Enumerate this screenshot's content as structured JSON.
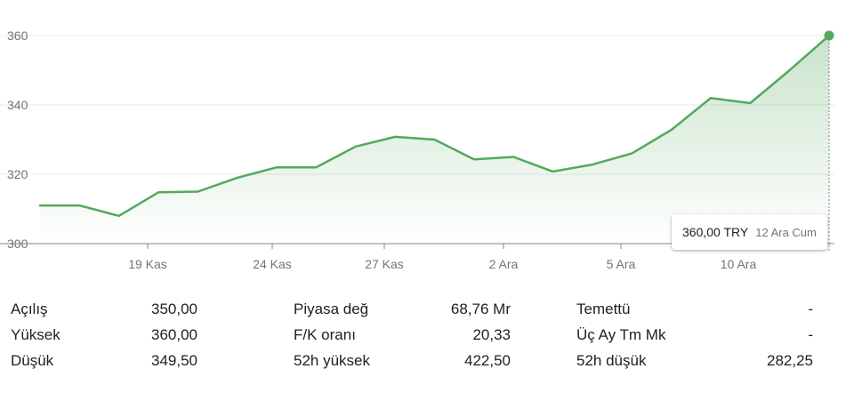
{
  "chart_data": {
    "type": "area",
    "y_ticks": [
      300,
      320,
      340,
      360
    ],
    "ylim": [
      300,
      360
    ],
    "x_ticks": [
      "19 Kas",
      "24 Kas",
      "27 Kas",
      "2 Ara",
      "5 Ara",
      "10 Ara"
    ],
    "grid": true,
    "series": [
      {
        "values": [
          311,
          311,
          308,
          314.8,
          315,
          319,
          322,
          322,
          328,
          330.8,
          330,
          324.3,
          325,
          320.8,
          322.8,
          326,
          332.8,
          342,
          340.5,
          350,
          360
        ]
      }
    ],
    "line_color": "#54a85d",
    "fill_color": "#c8e6c9"
  },
  "tooltip": {
    "price": "360,00 TRY",
    "date": "12 Ara Cum"
  },
  "stats": {
    "rows": [
      [
        {
          "label": "Açılış",
          "value": "350,00"
        },
        {
          "label": "Piyasa değ",
          "value": "68,76 Mr"
        },
        {
          "label": "Temettü",
          "value": "-"
        }
      ],
      [
        {
          "label": "Yüksek",
          "value": "360,00"
        },
        {
          "label": "F/K oranı",
          "value": "20,33"
        },
        {
          "label": "Üç Ay Tm Mk",
          "value": "-"
        }
      ],
      [
        {
          "label": "Düşük",
          "value": "349,50"
        },
        {
          "label": "52h yüksek",
          "value": "422,50"
        },
        {
          "label": "52h düşük",
          "value": "282,25"
        }
      ]
    ]
  }
}
